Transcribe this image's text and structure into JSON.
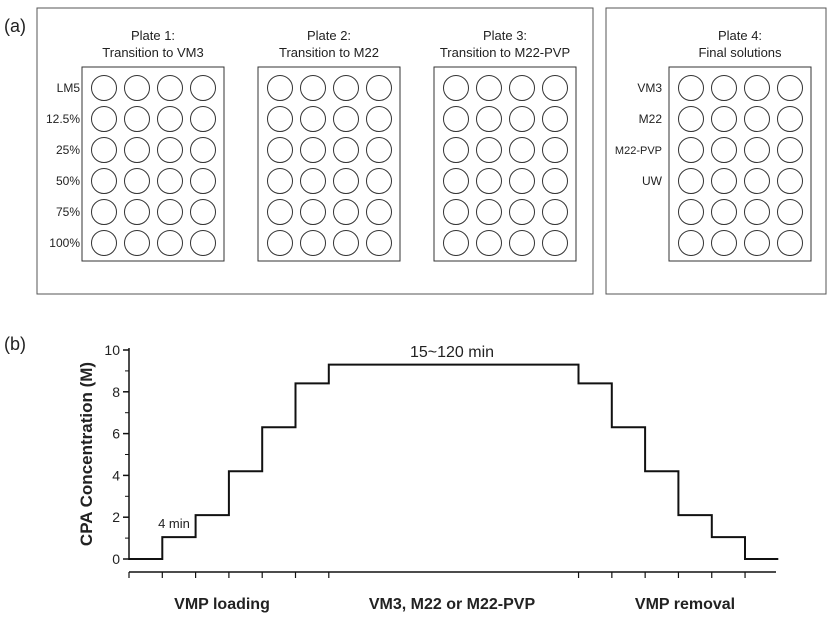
{
  "panel_a": {
    "label": "(a)",
    "plates": [
      {
        "title_line1": "Plate 1:",
        "title_line2": "Transition to VM3",
        "rows": 6,
        "cols": 4,
        "row_labels": [
          "LM5",
          "12.5%",
          "25%",
          "50%",
          "75%",
          "100%"
        ]
      },
      {
        "title_line1": "Plate 2:",
        "title_line2": "Transition to M22",
        "rows": 6,
        "cols": 4,
        "row_labels": []
      },
      {
        "title_line1": "Plate 3:",
        "title_line2": "Transition to M22-PVP",
        "rows": 6,
        "cols": 4,
        "row_labels": []
      },
      {
        "title_line1": "Plate 4:",
        "title_line2": "Final solutions",
        "rows": 6,
        "cols": 4,
        "row_labels": [
          "VM3",
          "M22",
          "M22-PVP",
          "UW"
        ]
      }
    ]
  },
  "panel_b": {
    "label": "(b)",
    "chart_data": {
      "type": "line",
      "title": "",
      "xlabel": "",
      "ylabel": "CPA Concentration (M)",
      "ylim": [
        0,
        10
      ],
      "yticks": [
        0,
        2,
        4,
        6,
        8,
        10
      ],
      "xlim": [
        0,
        19
      ],
      "x_unit_note_label": "4 min",
      "plateau_label": "15~120 min",
      "phase_labels": [
        "VMP loading",
        "VM3, M22 or M22-PVP",
        "VMP removal"
      ],
      "series": [
        {
          "steps_x": [
            0,
            1,
            2,
            3,
            4,
            5,
            6,
            13.5,
            14.5,
            15.5,
            16.5,
            17.5,
            18.5,
            19.5
          ],
          "steps_y": [
            0,
            1.05,
            2.1,
            4.2,
            6.3,
            8.4,
            9.3,
            8.4,
            6.3,
            4.2,
            2.1,
            1.05,
            0
          ]
        }
      ],
      "grid": false
    }
  }
}
